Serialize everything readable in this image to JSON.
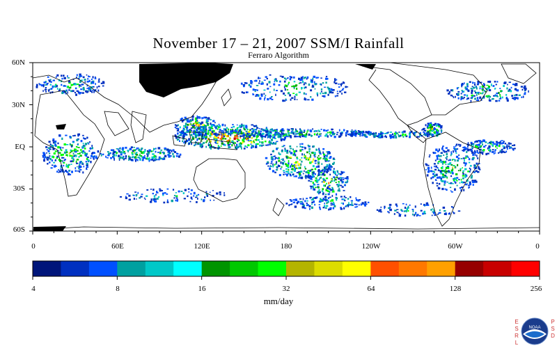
{
  "title": "November 17 – 21, 2007 SSM/I Rainfall",
  "subtitle": "Ferraro Algorithm",
  "lat_labels": [
    "60N",
    "30N",
    "EQ",
    "30S",
    "60S"
  ],
  "lon_labels": [
    "0",
    "60E",
    "120E",
    "180",
    "120W",
    "60W",
    "0"
  ],
  "colorbar": {
    "units": "mm/day",
    "tick_labels": [
      "4",
      "8",
      "16",
      "32",
      "64",
      "128",
      "256"
    ],
    "colors": [
      "#00157a",
      "#0030c0",
      "#0050ff",
      "#00a0a0",
      "#00c8c8",
      "#00ffff",
      "#009400",
      "#00c800",
      "#00ff00",
      "#b4b400",
      "#dcdc00",
      "#ffff00",
      "#ff5000",
      "#ff7800",
      "#ffa000",
      "#960000",
      "#c80000",
      "#ff0000"
    ]
  },
  "logo": {
    "esrl_text": "ESRL",
    "psd_text": "PSD",
    "noaa_text": "NOAA"
  }
}
